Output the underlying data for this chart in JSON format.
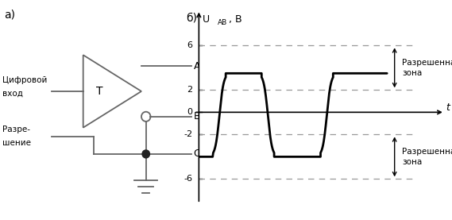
{
  "panel_a_label": "а)",
  "panel_b_label": "б)",
  "t_label": "t",
  "yticks": [
    -6,
    -2,
    0,
    2,
    6
  ],
  "ylim": [
    -8.5,
    9.5
  ],
  "xlim": [
    0,
    10
  ],
  "zone_label_upper": "Разрешенная\nзона",
  "zone_label_lower": "Разрешенная\nзона",
  "signal_color": "#000000",
  "dash_color": "#999999",
  "line_color": "#666666",
  "background": "#ffffff",
  "signal_high": 3.5,
  "signal_low": -4.0
}
